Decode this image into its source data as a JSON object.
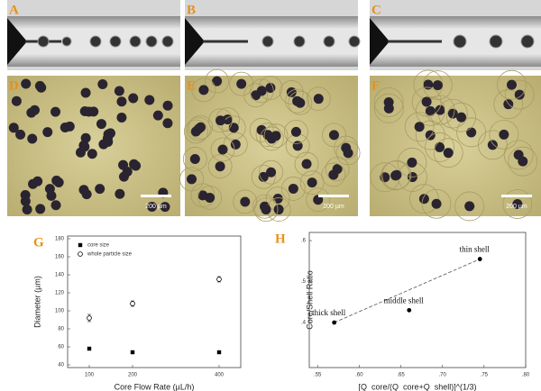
{
  "panels": {
    "labels": [
      "A",
      "B",
      "C",
      "D",
      "E",
      "F"
    ],
    "scale_bar": [
      "200 µm",
      "200 µm",
      "200 µm"
    ]
  },
  "chart_data": [
    {
      "type": "scatter",
      "panel_label": "G",
      "xlabel": "Core Flow Rate (µL/h)",
      "ylabel": "Diameter (µm)",
      "x": [
        100,
        200,
        400
      ],
      "series": [
        {
          "name": "core size",
          "color": "#000000",
          "marker": "square",
          "values": [
            58,
            54,
            54
          ]
        },
        {
          "name": "whole particle size",
          "color": "#000000",
          "marker": "open-circle",
          "values": [
            92,
            108,
            135
          ],
          "errors": [
            4,
            3,
            3
          ]
        }
      ],
      "xlim": [
        50,
        450
      ],
      "xticks": [
        100,
        200,
        400
      ],
      "ylim": [
        37,
        183
      ],
      "yticks": [
        40,
        60,
        80,
        100,
        120,
        140,
        160,
        180
      ],
      "legend": "top-left"
    },
    {
      "type": "scatter",
      "panel_label": "H",
      "xlabel": "[Q_core/(Q_core+Q_shell)]^(1/3)",
      "ylabel": "Core/Shell Ratio",
      "x": [
        0.57,
        0.66,
        0.745
      ],
      "values": [
        0.4,
        0.43,
        0.555
      ],
      "color": "#000000",
      "point_labels": [
        "thick shell",
        "middle shell",
        "thin shell"
      ],
      "trend_line": true,
      "xlim": [
        0.54,
        0.8
      ],
      "xticks": [
        {
          "value": 0.55,
          "label": ".55"
        },
        {
          "value": 0.6,
          "label": ".60"
        },
        {
          "value": 0.65,
          "label": ".65"
        },
        {
          "value": 0.7,
          "label": ".70"
        },
        {
          "value": 0.75,
          "label": ".75"
        },
        {
          "value": 0.8,
          "label": ".80"
        }
      ],
      "ylim": [
        0.29,
        0.62
      ],
      "yticks": [
        {
          "value": 0.4,
          "label": ".4"
        },
        {
          "value": 0.5,
          "label": ".5"
        },
        {
          "value": 0.6,
          "label": ".6"
        }
      ]
    }
  ]
}
